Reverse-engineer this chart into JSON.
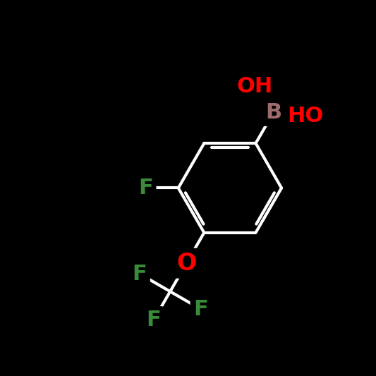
{
  "background_color": "#000000",
  "bond_color": "#000000",
  "line_color": "#ffffff",
  "bond_width": 3.0,
  "atom_colors": {
    "F": "#3a8c3a",
    "O": "#ff0000",
    "B": "#9e6b6b",
    "C": "#ffffff",
    "H": "#ffffff"
  },
  "font_size": 22,
  "font_weight": "bold"
}
